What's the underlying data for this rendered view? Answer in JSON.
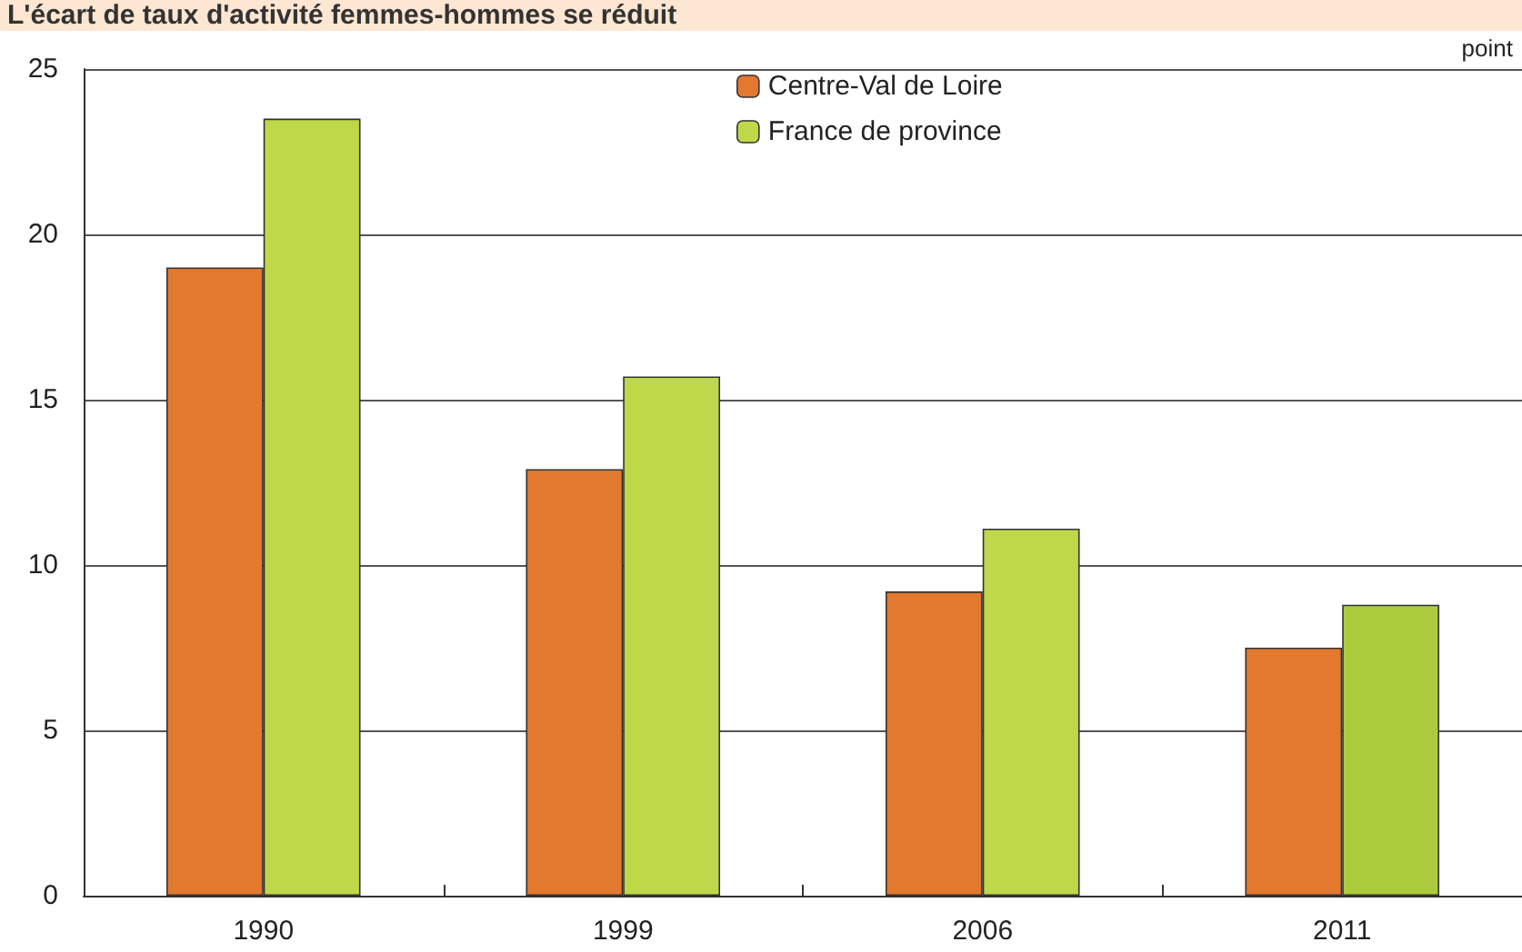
{
  "chart_data": {
    "type": "bar",
    "title": "L'écart de taux d'activité femmes-hommes se réduit",
    "ylabel": "point",
    "categories": [
      "1990",
      "1999",
      "2006",
      "2011"
    ],
    "series": [
      {
        "name": "Centre-Val de Loire",
        "color": "#e3782f",
        "values": [
          19.0,
          12.9,
          9.2,
          7.5
        ]
      },
      {
        "name": "France de province",
        "color": "#bfd849",
        "colors": [
          "#bfd849",
          "#bfd849",
          "#bfd849",
          "#accb3c"
        ],
        "values": [
          23.5,
          15.7,
          11.1,
          8.8
        ]
      }
    ],
    "ylim": [
      0,
      25
    ],
    "yticks": [
      0,
      5,
      10,
      15,
      20,
      25
    ],
    "grid": "y",
    "legend": "top"
  }
}
